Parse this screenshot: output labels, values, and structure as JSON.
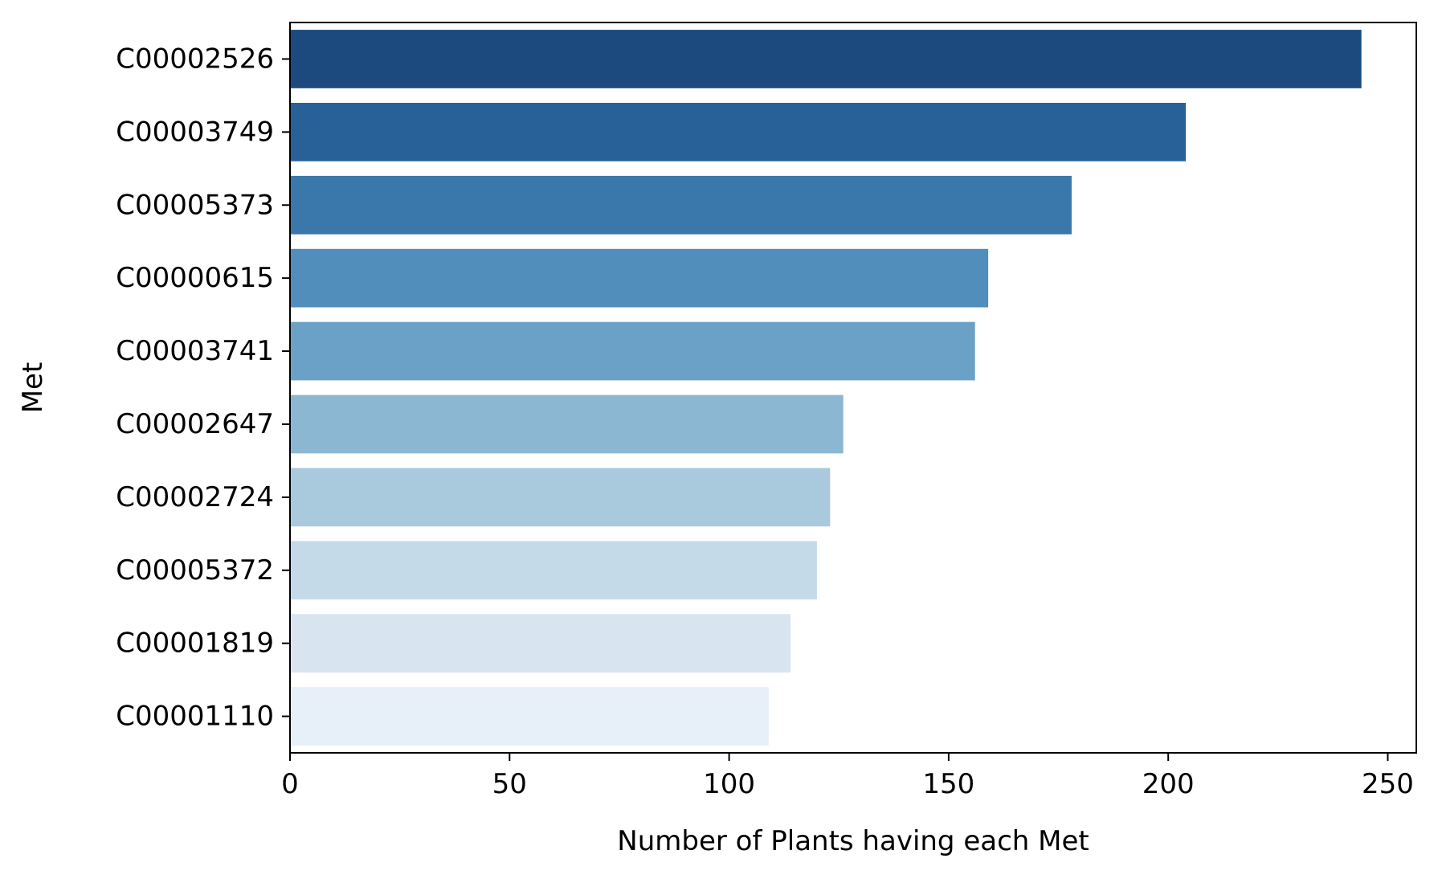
{
  "chart_data": {
    "type": "bar",
    "orientation": "horizontal",
    "title": "",
    "xlabel": "Number of Plants having each Met",
    "ylabel": "Met",
    "categories": [
      "C00002526",
      "C00003749",
      "C00005373",
      "C00000615",
      "C00003741",
      "C00002647",
      "C00002724",
      "C00005372",
      "C00001819",
      "C00001110"
    ],
    "values": [
      244,
      204,
      178,
      159,
      156,
      126,
      123,
      120,
      114,
      109
    ],
    "colors": [
      "#1c4a7f",
      "#276197",
      "#3a77aa",
      "#528ebb",
      "#6ca1c7",
      "#8bb7d2",
      "#a9c9dd",
      "#c5dae9",
      "#d8e5f0",
      "#e7eff8"
    ],
    "xlim": [
      0,
      256.5
    ],
    "xticks": [
      0,
      50,
      100,
      150,
      200,
      250
    ],
    "xtick_labels": [
      "0",
      "50",
      "100",
      "150",
      "200",
      "250"
    ],
    "grid": false,
    "legend": "none"
  }
}
